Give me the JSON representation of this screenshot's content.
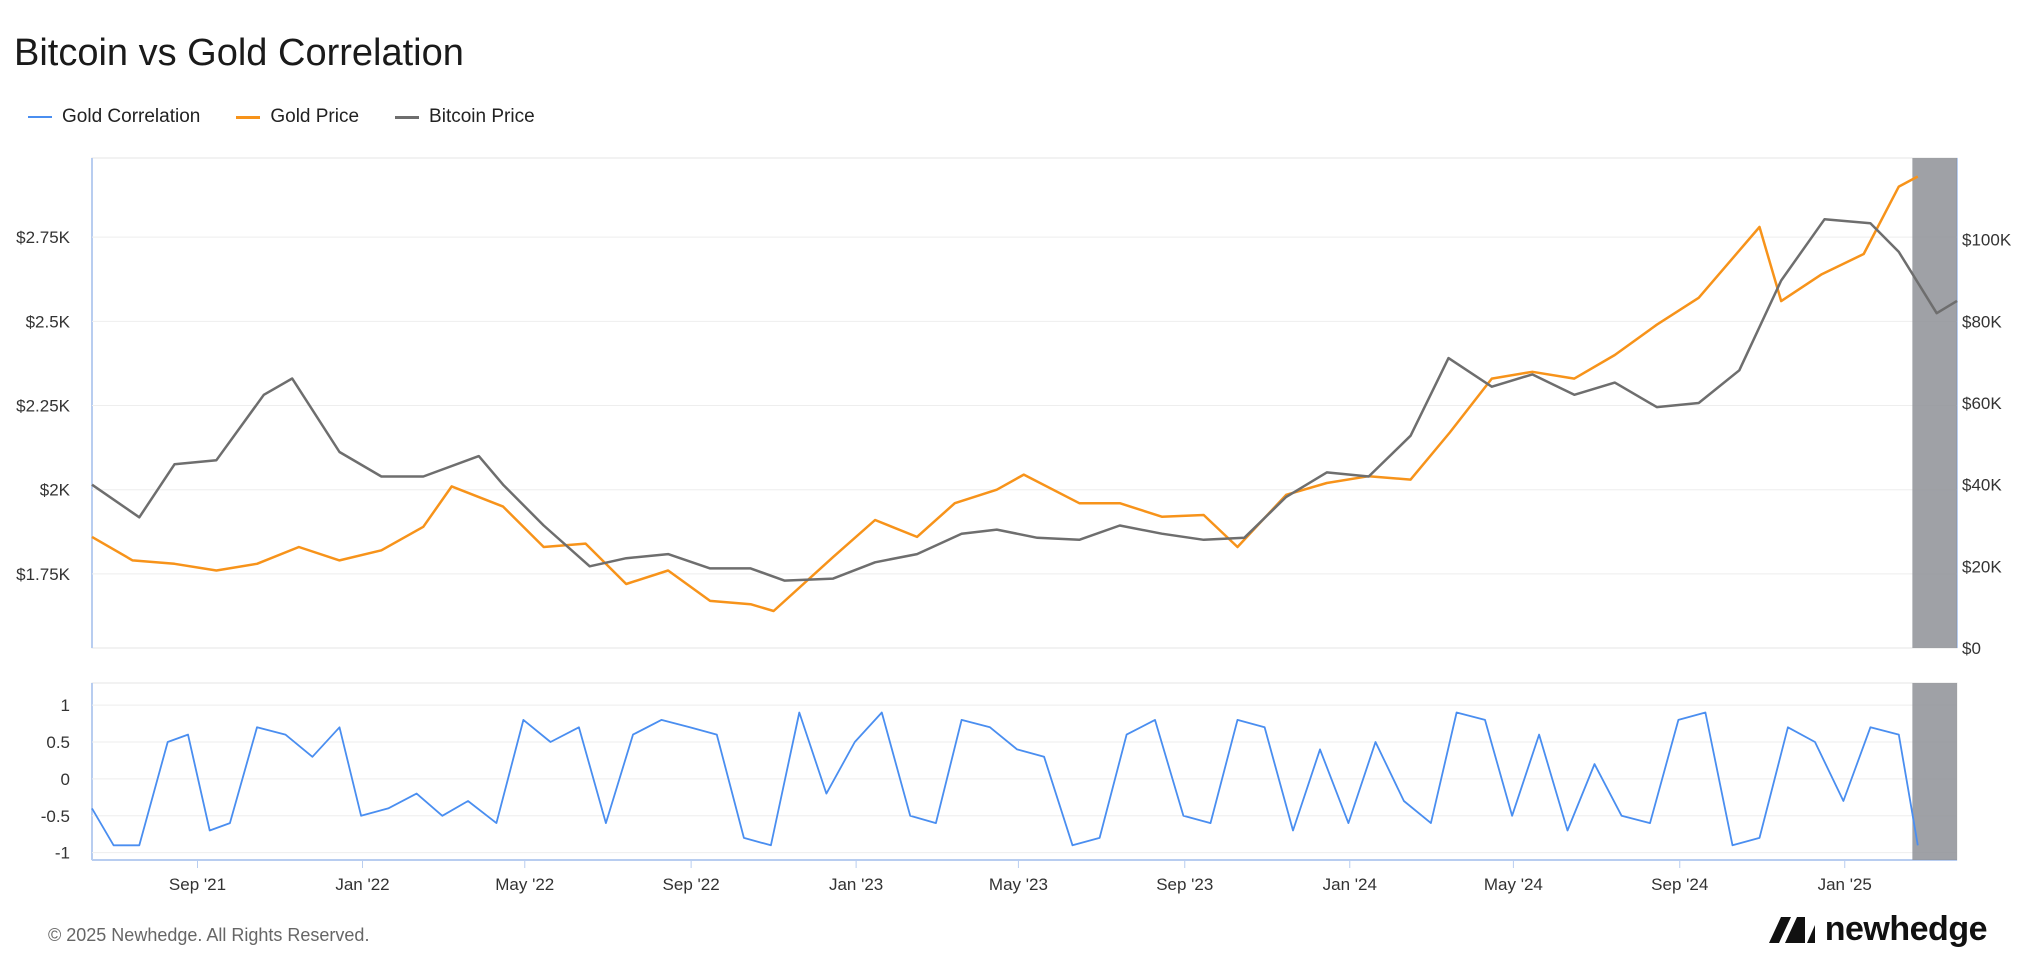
{
  "title": "Bitcoin vs Gold Correlation",
  "legend": [
    {
      "label": "Gold Correlation",
      "color": "#4a8ef0"
    },
    {
      "label": "Gold Price",
      "color": "#f7931a"
    },
    {
      "label": "Bitcoin Price",
      "color": "#6e6e6e"
    }
  ],
  "footer": "© 2025 Newhedge. All Rights Reserved.",
  "logo_text": "newhedge",
  "chart_data": [
    {
      "type": "line",
      "title": "Bitcoin vs Gold Correlation",
      "x_ticks": [
        "Sep '21",
        "Jan '22",
        "May '22",
        "Sep '22",
        "Jan '23",
        "May '23",
        "Sep '23",
        "Jan '24",
        "May '24",
        "Sep '24",
        "Jan '25"
      ],
      "x_range": [
        "2021-06-15",
        "2025-03-25"
      ],
      "y_left": {
        "ticks": [
          "$1.75K",
          "$2K",
          "$2.25K",
          "$2.5K",
          "$2.75K"
        ],
        "values": [
          1750,
          2000,
          2250,
          2500,
          2750
        ],
        "range": [
          1530,
          2985
        ]
      },
      "y_right": {
        "ticks": [
          "$0",
          "$20K",
          "$40K",
          "$60K",
          "$80K",
          "$100K"
        ],
        "values": [
          0,
          20000,
          40000,
          60000,
          80000,
          100000
        ],
        "range": [
          0,
          120000
        ]
      },
      "grid": true,
      "shaded_range": [
        "2025-02-20",
        "2025-03-25"
      ],
      "series": [
        {
          "name": "Gold Price",
          "axis": "left",
          "color": "#f7931a",
          "x": [
            "2021-06-15",
            "2021-07-15",
            "2021-08-15",
            "2021-09-15",
            "2021-10-15",
            "2021-11-15",
            "2021-12-15",
            "2022-01-15",
            "2022-02-15",
            "2022-03-08",
            "2022-04-15",
            "2022-05-15",
            "2022-06-15",
            "2022-07-15",
            "2022-08-15",
            "2022-09-15",
            "2022-10-15",
            "2022-11-01",
            "2022-12-15",
            "2023-01-15",
            "2023-02-15",
            "2023-03-15",
            "2023-04-15",
            "2023-05-05",
            "2023-06-15",
            "2023-07-15",
            "2023-08-15",
            "2023-09-15",
            "2023-10-10",
            "2023-11-15",
            "2023-12-15",
            "2024-01-15",
            "2024-02-15",
            "2024-03-15",
            "2024-04-15",
            "2024-05-15",
            "2024-06-15",
            "2024-07-15",
            "2024-08-15",
            "2024-09-15",
            "2024-10-30",
            "2024-11-15",
            "2024-12-15",
            "2025-01-15",
            "2025-02-10",
            "2025-02-24"
          ],
          "values": [
            1860,
            1790,
            1780,
            1760,
            1780,
            1830,
            1790,
            1820,
            1890,
            2010,
            1950,
            1830,
            1840,
            1720,
            1760,
            1670,
            1660,
            1640,
            1800,
            1910,
            1860,
            1960,
            2000,
            2045,
            1960,
            1960,
            1920,
            1925,
            1830,
            1985,
            2020,
            2040,
            2030,
            2170,
            2330,
            2350,
            2330,
            2400,
            2490,
            2570,
            2780,
            2560,
            2640,
            2700,
            2900,
            2930
          ]
        },
        {
          "name": "Bitcoin Price",
          "axis": "right",
          "color": "#6e6e6e",
          "x": [
            "2021-06-15",
            "2021-07-20",
            "2021-08-15",
            "2021-09-15",
            "2021-10-20",
            "2021-11-10",
            "2021-12-15",
            "2022-01-15",
            "2022-02-15",
            "2022-03-28",
            "2022-04-15",
            "2022-05-15",
            "2022-06-18",
            "2022-07-15",
            "2022-08-15",
            "2022-09-15",
            "2022-10-15",
            "2022-11-09",
            "2022-12-15",
            "2023-01-15",
            "2023-02-15",
            "2023-03-20",
            "2023-04-15",
            "2023-05-15",
            "2023-06-15",
            "2023-07-15",
            "2023-08-15",
            "2023-09-15",
            "2023-10-15",
            "2023-11-15",
            "2023-12-15",
            "2024-01-15",
            "2024-02-15",
            "2024-03-14",
            "2024-04-15",
            "2024-05-15",
            "2024-06-15",
            "2024-07-15",
            "2024-08-15",
            "2024-09-15",
            "2024-10-15",
            "2024-11-15",
            "2024-12-17",
            "2025-01-20",
            "2025-02-10",
            "2025-03-10",
            "2025-03-25"
          ],
          "values": [
            40000,
            32000,
            45000,
            46000,
            62000,
            66000,
            48000,
            42000,
            42000,
            47000,
            40000,
            30000,
            20000,
            22000,
            23000,
            19500,
            19500,
            16500,
            17000,
            21000,
            23000,
            28000,
            29000,
            27000,
            26500,
            30000,
            28000,
            26500,
            27000,
            37000,
            43000,
            42000,
            52000,
            71000,
            64000,
            67000,
            62000,
            65000,
            59000,
            60000,
            68000,
            90000,
            105000,
            104000,
            97000,
            82000,
            85000
          ]
        }
      ]
    },
    {
      "type": "line",
      "series_name": "Gold Correlation",
      "y_ticks": [
        "1",
        "0.5",
        "0",
        "-0.5",
        "-1"
      ],
      "y_values": [
        1,
        0.5,
        0,
        -0.5,
        -1
      ],
      "y_range": [
        -1.1,
        1.3
      ],
      "series": [
        {
          "name": "Gold Correlation",
          "color": "#4a8ef0",
          "x": [
            "2021-06-15",
            "2021-07-01",
            "2021-07-20",
            "2021-08-10",
            "2021-08-25",
            "2021-09-10",
            "2021-09-25",
            "2021-10-15",
            "2021-11-05",
            "2021-11-25",
            "2021-12-15",
            "2021-12-31",
            "2022-01-20",
            "2022-02-10",
            "2022-03-01",
            "2022-03-20",
            "2022-04-10",
            "2022-04-30",
            "2022-05-20",
            "2022-06-10",
            "2022-06-30",
            "2022-07-20",
            "2022-08-10",
            "2022-08-31",
            "2022-09-20",
            "2022-10-10",
            "2022-10-30",
            "2022-11-20",
            "2022-12-10",
            "2022-12-31",
            "2023-01-20",
            "2023-02-10",
            "2023-03-01",
            "2023-03-20",
            "2023-04-10",
            "2023-04-30",
            "2023-05-20",
            "2023-06-10",
            "2023-06-30",
            "2023-07-20",
            "2023-08-10",
            "2023-08-31",
            "2023-09-20",
            "2023-10-10",
            "2023-10-30",
            "2023-11-20",
            "2023-12-10",
            "2023-12-31",
            "2024-01-20",
            "2024-02-10",
            "2024-03-01",
            "2024-03-20",
            "2024-04-10",
            "2024-04-30",
            "2024-05-20",
            "2024-06-10",
            "2024-06-30",
            "2024-07-20",
            "2024-08-10",
            "2024-08-31",
            "2024-09-20",
            "2024-10-10",
            "2024-10-30",
            "2024-11-20",
            "2024-12-10",
            "2024-12-31",
            "2025-01-20",
            "2025-02-10",
            "2025-02-24"
          ],
          "values": [
            -0.4,
            -0.9,
            -0.9,
            0.5,
            0.6,
            -0.7,
            -0.6,
            0.7,
            0.6,
            0.3,
            0.7,
            -0.5,
            -0.4,
            -0.2,
            -0.5,
            -0.3,
            -0.6,
            0.8,
            0.5,
            0.7,
            -0.6,
            0.6,
            0.8,
            0.7,
            0.6,
            -0.8,
            -0.9,
            0.9,
            -0.2,
            0.5,
            0.9,
            -0.5,
            -0.6,
            0.8,
            0.7,
            0.4,
            0.3,
            -0.9,
            -0.8,
            0.6,
            0.8,
            -0.5,
            -0.6,
            0.8,
            0.7,
            -0.7,
            0.4,
            -0.6,
            0.5,
            -0.3,
            -0.6,
            0.9,
            0.8,
            -0.5,
            0.6,
            -0.7,
            0.2,
            -0.5,
            -0.6,
            0.8,
            0.9,
            -0.9,
            -0.8,
            0.7,
            0.5,
            -0.3,
            0.7,
            0.6,
            -0.9
          ]
        }
      ]
    }
  ]
}
